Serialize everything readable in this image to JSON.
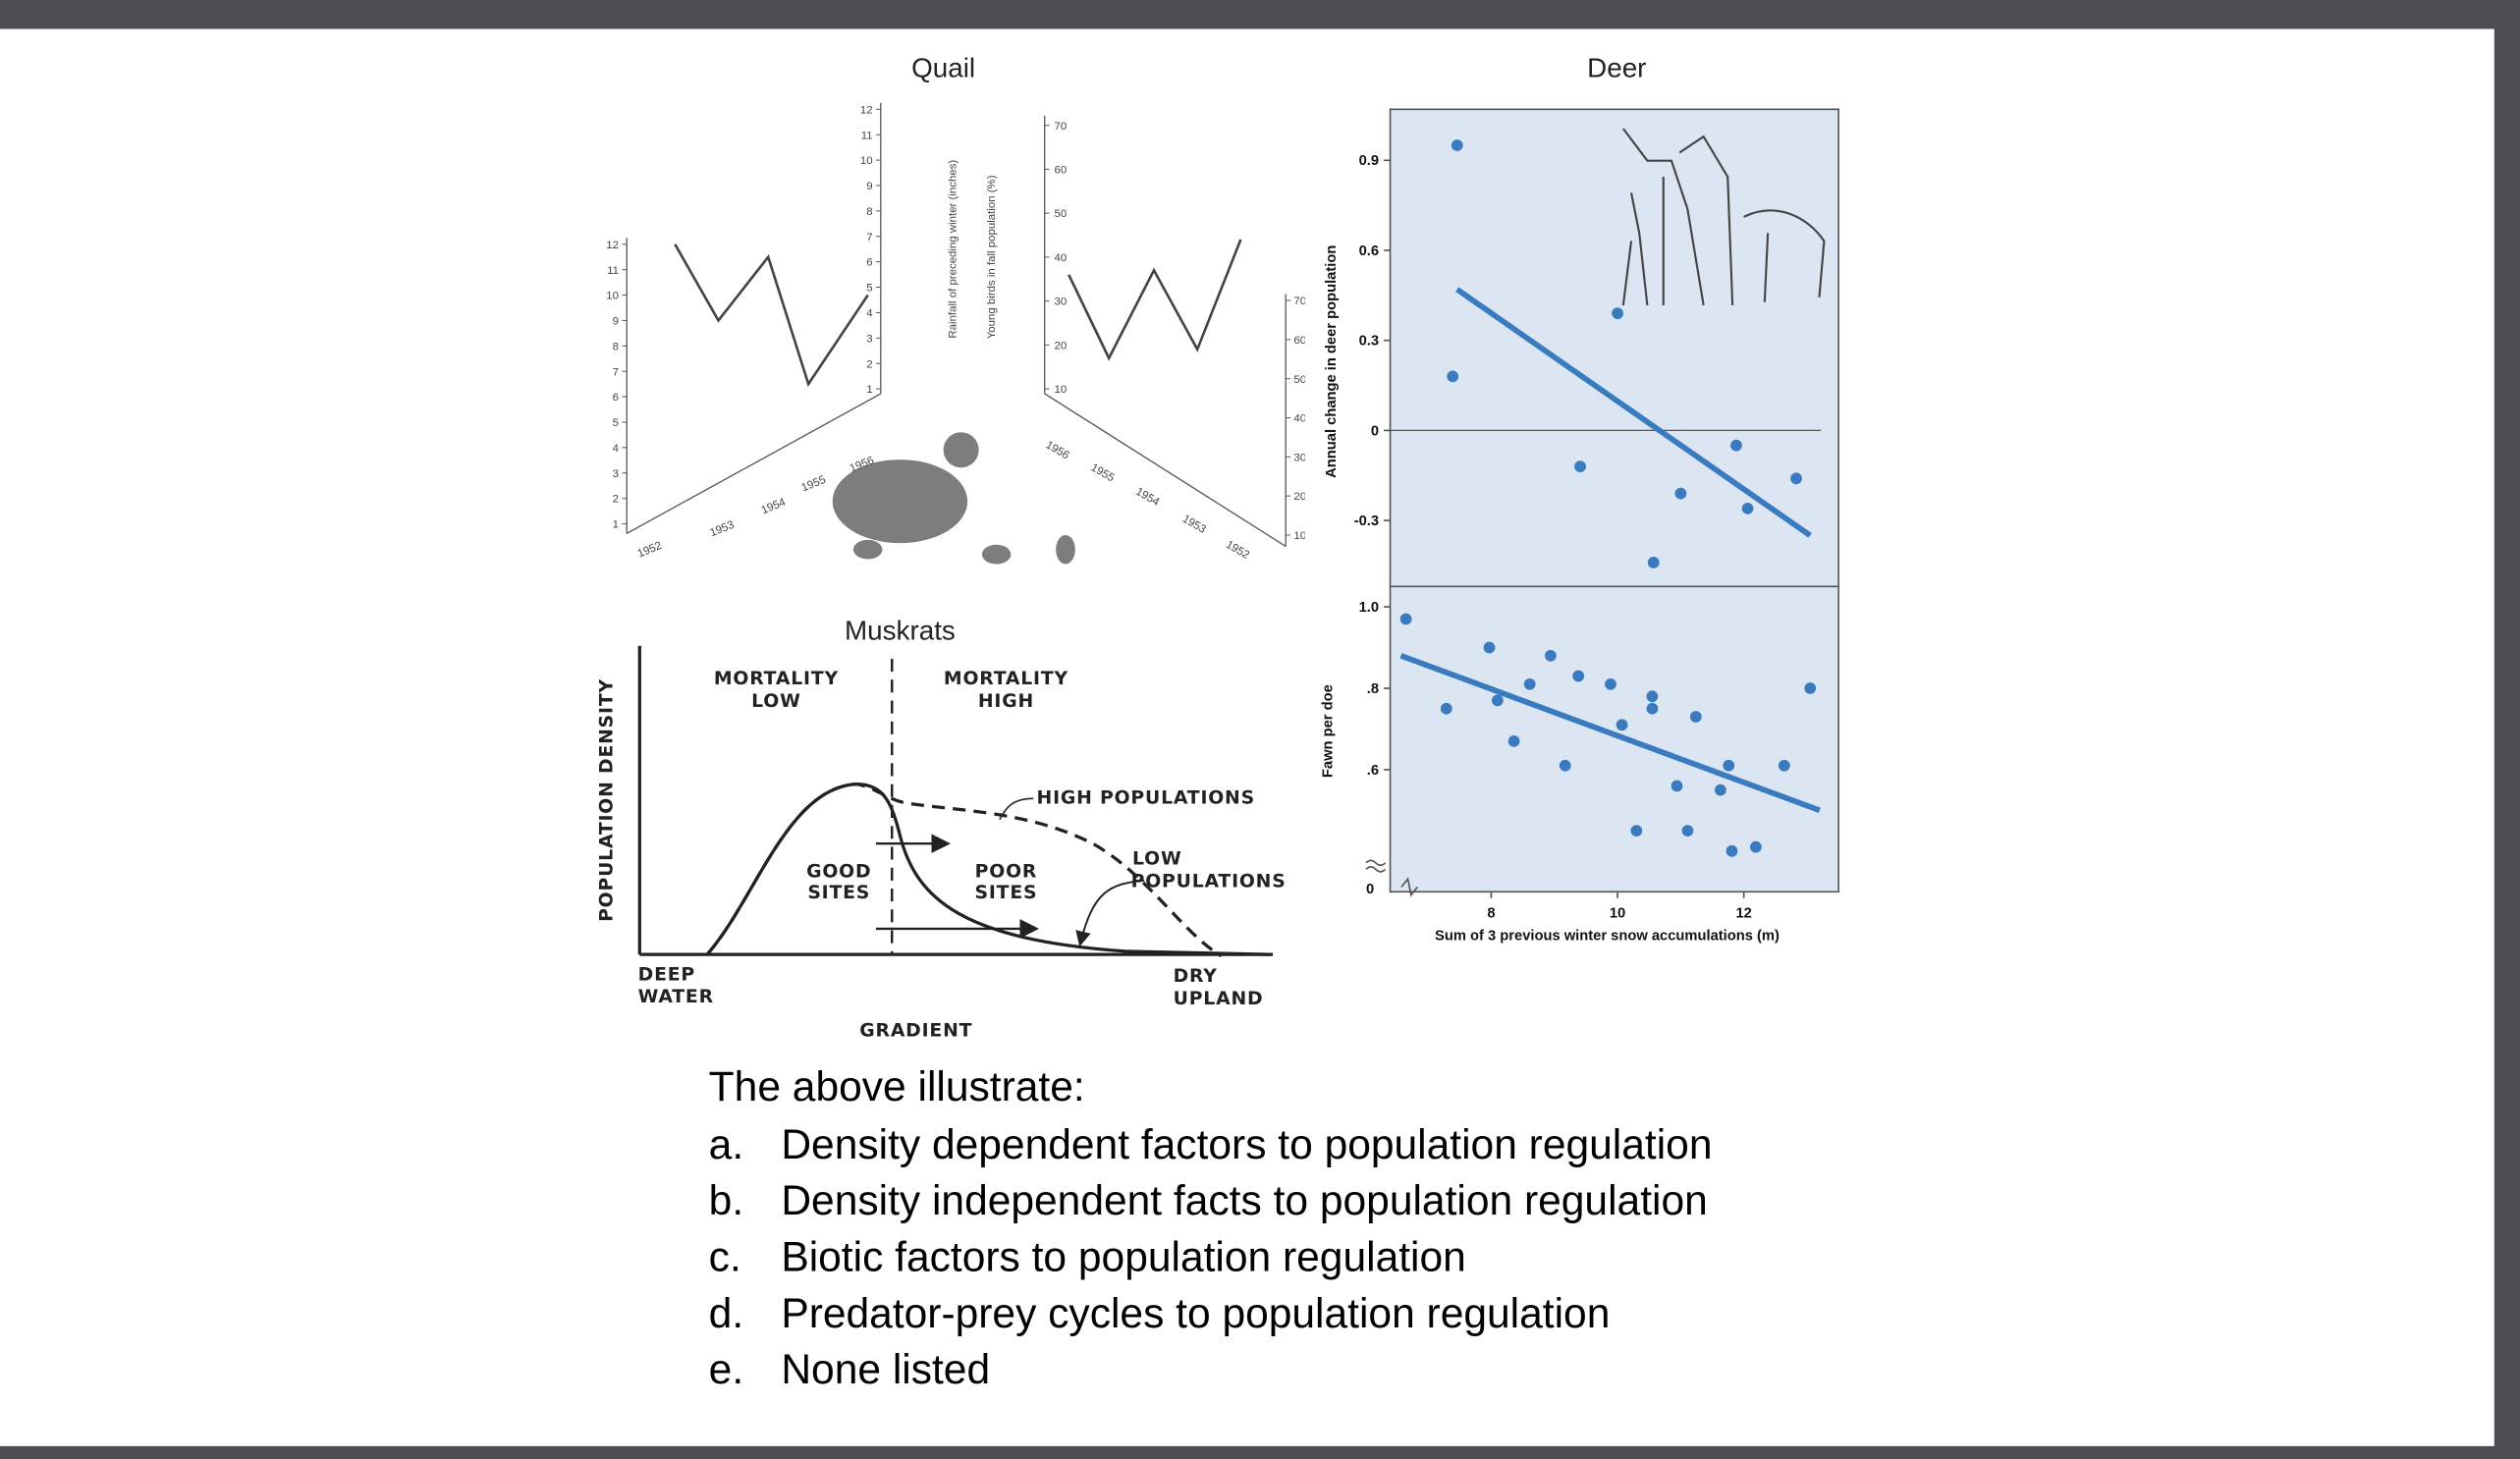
{
  "quail": {
    "title": "Quail",
    "rainfall_axis_label": "Rainfall of preceding winter (inches)",
    "young_axis_label": "Young birds in fall population (%)",
    "rainfall_ticks": [
      1,
      2,
      3,
      4,
      5,
      6,
      7,
      8,
      9,
      10,
      11,
      12
    ],
    "rainfall_lim": [
      1,
      12
    ],
    "young_ticks": [
      10,
      20,
      30,
      40,
      50,
      60,
      70
    ],
    "young_lim": [
      10,
      70
    ],
    "years": [
      "1952",
      "1953",
      "1954",
      "1955",
      "1956"
    ],
    "rainfall": [
      12,
      9,
      11.5,
      6.5,
      10
    ],
    "young_birds": [
      44,
      19,
      37,
      17,
      36
    ]
  },
  "muskrats": {
    "title": "Muskrats",
    "y_axis_label": "POPULATION DENSITY",
    "x_axis_label": "GRADIENT",
    "mortality_low": [
      "MORTALITY",
      "LOW"
    ],
    "mortality_high": [
      "MORTALITY",
      "HIGH"
    ],
    "high_populations": "HIGH POPULATIONS",
    "low_populations": [
      "LOW",
      "POPULATIONS"
    ],
    "good_sites": [
      "GOOD",
      "SITES"
    ],
    "poor_sites": [
      "POOR",
      "SITES"
    ],
    "deep_water": [
      "DEEP",
      "WATER"
    ],
    "dry_upland": [
      "DRY",
      "UPLAND"
    ]
  },
  "deer": {
    "title": "Deer",
    "x_label": "Sum of 3 previous winter snow accumulations (m)",
    "xlim": [
      6.4,
      13.5
    ],
    "xticks": [
      8,
      10,
      12
    ],
    "top": {
      "y_label": "Annual change in deer population",
      "ylim": [
        -0.52,
        1.07
      ],
      "yticks": [
        0.9,
        0.6,
        0.3,
        0,
        -0.3
      ],
      "color": "#3a7bbf",
      "x": [
        7.46,
        7.39,
        10.0,
        9.41,
        11.0,
        11.88,
        12.06,
        12.83,
        10.57
      ],
      "y": [
        0.95,
        0.18,
        0.39,
        -0.12,
        -0.21,
        -0.05,
        -0.26,
        -0.16,
        -0.44
      ],
      "trend": {
        "x": [
          7.46,
          13.05
        ],
        "y": [
          0.47,
          -0.35
        ]
      }
    },
    "bottom": {
      "y_label": "Fawn per doe",
      "ylim": [
        0.3,
        1.05
      ],
      "yticks": [
        {
          "value": 1,
          "label": "1.0"
        },
        {
          "value": 0.8,
          "label": ".8"
        },
        {
          "value": 0.6,
          "label": ".6"
        }
      ],
      "break_tick": 0,
      "color": "#3a7bbf",
      "x": [
        6.65,
        7.29,
        7.97,
        8.1,
        8.36,
        8.61,
        8.94,
        9.17,
        9.38,
        9.89,
        10.07,
        10.3,
        10.55,
        10.55,
        10.94,
        11.11,
        11.24,
        11.63,
        11.76,
        11.81,
        12.19,
        12.64,
        13.05
      ],
      "y": [
        0.97,
        0.75,
        0.9,
        0.77,
        0.67,
        0.81,
        0.88,
        0.61,
        0.83,
        0.81,
        0.71,
        0.45,
        0.78,
        0.75,
        0.56,
        0.45,
        0.73,
        0.55,
        0.61,
        0.4,
        0.41,
        0.61,
        0.8
      ],
      "trend": {
        "x": [
          6.57,
          13.2
        ],
        "y": [
          0.88,
          0.5
        ]
      }
    }
  },
  "question": {
    "prompt": "The above illustrate:",
    "options": [
      {
        "letter": "a.",
        "text": "Density dependent factors to population regulation"
      },
      {
        "letter": "b.",
        "text": "Density independent facts to population regulation"
      },
      {
        "letter": "c.",
        "text": "Biotic factors to population regulation"
      },
      {
        "letter": "d.",
        "text": "Predator-prey cycles to population regulation"
      },
      {
        "letter": "e.",
        "text": "None listed"
      }
    ]
  }
}
